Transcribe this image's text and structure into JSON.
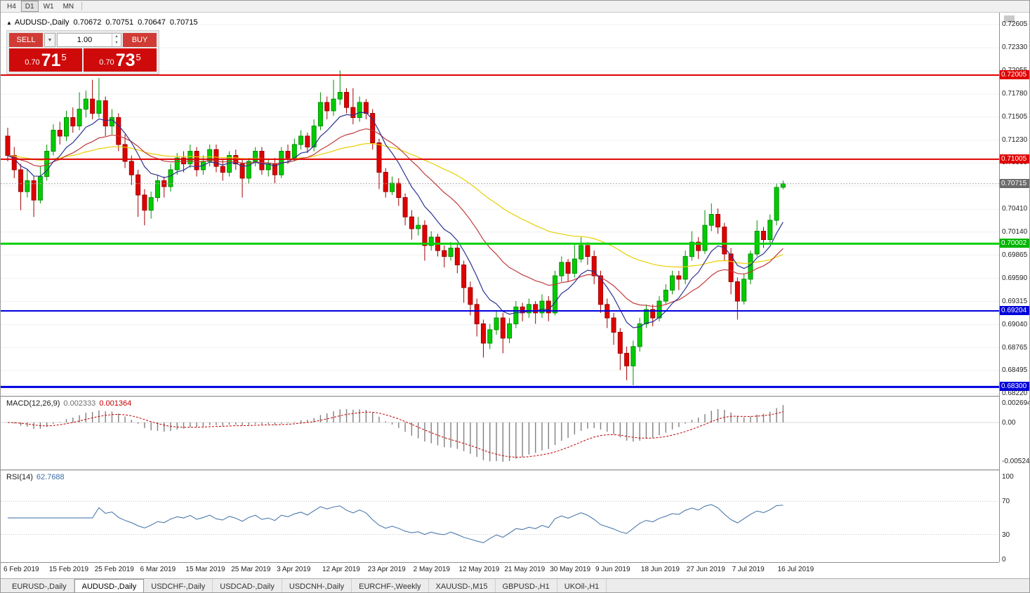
{
  "toolbar": {
    "timeframes": [
      "H4",
      "D1",
      "W1",
      "MN"
    ],
    "active_timeframe": "D1"
  },
  "icons": {
    "panel_toggle": "▲",
    "dropdown": "▼",
    "spin_up": "▴",
    "spin_down": "▾"
  },
  "chart_header": {
    "symbol_title": "AUDUSD-,Daily",
    "open": "0.70672",
    "high": "0.70751",
    "low": "0.70647",
    "close": "0.70715"
  },
  "trade_panel": {
    "sell_label": "SELL",
    "buy_label": "BUY",
    "volume": "1.00",
    "sell_price": {
      "big_figure": "0.70",
      "pips": "71",
      "pipette": "5"
    },
    "buy_price": {
      "big_figure": "0.70",
      "pips": "73",
      "pipette": "5"
    }
  },
  "price_axis": {
    "labels": [
      "0.72605",
      "0.72330",
      "0.72055",
      "0.71780",
      "0.71505",
      "0.71230",
      "0.70960",
      "0.70685",
      "0.70410",
      "0.70140",
      "0.69865",
      "0.69590",
      "0.69315",
      "0.69040",
      "0.68765",
      "0.68495",
      "0.68220"
    ],
    "tags": [
      {
        "text": "0.72005",
        "price": 0.72005,
        "bg": "#e00000"
      },
      {
        "text": "0.71005",
        "price": 0.71005,
        "bg": "#e00000"
      },
      {
        "text": "0.70715",
        "price": 0.70715,
        "bg": "#6b6b6b"
      },
      {
        "text": "0.70002",
        "price": 0.70002,
        "bg": "#00b400"
      },
      {
        "text": "0.69204",
        "price": 0.69204,
        "bg": "#0000d8"
      },
      {
        "text": "0.68300",
        "price": 0.683,
        "bg": "#0000d8"
      }
    ]
  },
  "date_axis": [
    "6 Feb 2019",
    "15 Feb 2019",
    "25 Feb 2019",
    "6 Mar 2019",
    "15 Mar 2019",
    "25 Mar 2019",
    "3 Apr 2019",
    "12 Apr 2019",
    "23 Apr 2019",
    "2 May 2019",
    "12 May 2019",
    "21 May 2019",
    "30 May 2019",
    "9 Jun 2019",
    "18 Jun 2019",
    "27 Jun 2019",
    "7 Jul 2019",
    "16 Jul 2019"
  ],
  "macd_panel": {
    "name": "MACD(12,26,9)",
    "value": "0.002333",
    "signal_value": "0.001364",
    "axis": [
      "0.002694",
      "0.00",
      "-0.005242"
    ]
  },
  "rsi_panel": {
    "name": "RSI(14)",
    "value": "62.7688",
    "axis": [
      "100",
      "70",
      "30",
      "0"
    ],
    "levels": [
      70,
      30
    ]
  },
  "tabs": [
    {
      "label": "EURUSD-,Daily",
      "active": false
    },
    {
      "label": "AUDUSD-,Daily",
      "active": true
    },
    {
      "label": "USDCHF-,Daily",
      "active": false
    },
    {
      "label": "USDCAD-,Daily",
      "active": false
    },
    {
      "label": "USDCNH-,Daily",
      "active": false
    },
    {
      "label": "EURCHF-,Weekly",
      "active": false
    },
    {
      "label": "XAUUSD-,M15",
      "active": false
    },
    {
      "label": "GBPUSD-,H1",
      "active": false
    },
    {
      "label": "UKOil-,H1",
      "active": false
    }
  ],
  "chart_data": {
    "type": "candlestick",
    "symbol": "AUDUSD",
    "timeframe": "Daily",
    "y_range": [
      0.6822,
      0.72605
    ],
    "current_price": 0.70715,
    "colors": {
      "bull_fill": "#00cc00",
      "bull_edge": "#009000",
      "bear_fill": "#e00000",
      "bear_edge": "#a00000",
      "grid": "#f0f0f0",
      "macd_hist": "#808080",
      "macd_signal": "#c00000",
      "rsi_line": "#3b6ea5"
    },
    "hlines": [
      {
        "price": 0.72005,
        "color": "#e00000",
        "width": 2
      },
      {
        "price": 0.71005,
        "color": "#e00000",
        "width": 2
      },
      {
        "price": 0.70002,
        "color": "#00d000",
        "width": 3
      },
      {
        "price": 0.69204,
        "color": "#0000e0",
        "width": 2
      },
      {
        "price": 0.683,
        "color": "#0000e0",
        "width": 3
      }
    ],
    "indicators": {
      "mas": [
        {
          "period": 55,
          "color": "#e8cf00"
        },
        {
          "period": 21,
          "color": "#c03a3a"
        },
        {
          "period": 8,
          "color": "#2c3292"
        }
      ],
      "macd": {
        "fast": 12,
        "slow": 26,
        "signal": 9
      },
      "rsi": {
        "period": 14
      }
    },
    "ohlc": [
      [
        0.7128,
        0.7138,
        0.7098,
        0.7105
      ],
      [
        0.7105,
        0.7115,
        0.7078,
        0.7088
      ],
      [
        0.7088,
        0.7095,
        0.704,
        0.7062
      ],
      [
        0.7062,
        0.7088,
        0.7055,
        0.7075
      ],
      [
        0.7075,
        0.708,
        0.7032,
        0.7052
      ],
      [
        0.7052,
        0.7092,
        0.7048,
        0.708
      ],
      [
        0.708,
        0.7118,
        0.7075,
        0.711
      ],
      [
        0.711,
        0.7142,
        0.7105,
        0.7135
      ],
      [
        0.7135,
        0.7145,
        0.7118,
        0.7128
      ],
      [
        0.7128,
        0.7158,
        0.7122,
        0.715
      ],
      [
        0.715,
        0.7162,
        0.7132,
        0.714
      ],
      [
        0.714,
        0.718,
        0.7135,
        0.716
      ],
      [
        0.716,
        0.7182,
        0.715,
        0.7172
      ],
      [
        0.7172,
        0.7195,
        0.7148,
        0.7155
      ],
      [
        0.7155,
        0.7197,
        0.715,
        0.717
      ],
      [
        0.717,
        0.7175,
        0.7128,
        0.714
      ],
      [
        0.714,
        0.716,
        0.713,
        0.715
      ],
      [
        0.715,
        0.7155,
        0.711,
        0.7118
      ],
      [
        0.7118,
        0.713,
        0.709,
        0.7098
      ],
      [
        0.7098,
        0.7105,
        0.707,
        0.7082
      ],
      [
        0.7082,
        0.7088,
        0.7032,
        0.7058
      ],
      [
        0.7058,
        0.7065,
        0.7022,
        0.704
      ],
      [
        0.704,
        0.7062,
        0.703,
        0.7055
      ],
      [
        0.7055,
        0.7082,
        0.705,
        0.7075
      ],
      [
        0.7075,
        0.708,
        0.7055,
        0.7068
      ],
      [
        0.7068,
        0.7095,
        0.7062,
        0.7088
      ],
      [
        0.7088,
        0.7108,
        0.7082,
        0.7102
      ],
      [
        0.7102,
        0.711,
        0.7085,
        0.7095
      ],
      [
        0.7095,
        0.7118,
        0.709,
        0.711
      ],
      [
        0.711,
        0.7115,
        0.708,
        0.7088
      ],
      [
        0.7088,
        0.7105,
        0.7082,
        0.7098
      ],
      [
        0.7098,
        0.7118,
        0.7092,
        0.7112
      ],
      [
        0.7112,
        0.7118,
        0.7085,
        0.7092
      ],
      [
        0.7092,
        0.71,
        0.7075,
        0.7085
      ],
      [
        0.7085,
        0.711,
        0.708,
        0.7105
      ],
      [
        0.7105,
        0.7112,
        0.7088,
        0.7095
      ],
      [
        0.7095,
        0.71,
        0.7055,
        0.7078
      ],
      [
        0.7078,
        0.7102,
        0.7072,
        0.7098
      ],
      [
        0.7098,
        0.7115,
        0.7092,
        0.711
      ],
      [
        0.711,
        0.7115,
        0.7082,
        0.7088
      ],
      [
        0.7088,
        0.71,
        0.708,
        0.7095
      ],
      [
        0.7095,
        0.7102,
        0.7072,
        0.7082
      ],
      [
        0.7082,
        0.7115,
        0.7078,
        0.711
      ],
      [
        0.711,
        0.7118,
        0.7095,
        0.7102
      ],
      [
        0.7102,
        0.7125,
        0.7098,
        0.7118
      ],
      [
        0.7118,
        0.7135,
        0.7112,
        0.7128
      ],
      [
        0.7128,
        0.7132,
        0.7108,
        0.7115
      ],
      [
        0.7115,
        0.7148,
        0.711,
        0.714
      ],
      [
        0.714,
        0.718,
        0.7135,
        0.7168
      ],
      [
        0.7168,
        0.7175,
        0.7148,
        0.7158
      ],
      [
        0.7158,
        0.7195,
        0.7152,
        0.7172
      ],
      [
        0.7172,
        0.7206,
        0.7165,
        0.718
      ],
      [
        0.718,
        0.7185,
        0.7155,
        0.7162
      ],
      [
        0.7162,
        0.7185,
        0.7142,
        0.715
      ],
      [
        0.715,
        0.7175,
        0.7145,
        0.7168
      ],
      [
        0.7168,
        0.7172,
        0.7148,
        0.7155
      ],
      [
        0.7155,
        0.716,
        0.7112,
        0.712
      ],
      [
        0.712,
        0.7125,
        0.7065,
        0.7085
      ],
      [
        0.7085,
        0.709,
        0.7055,
        0.7062
      ],
      [
        0.7062,
        0.708,
        0.7058,
        0.7072
      ],
      [
        0.7072,
        0.7078,
        0.7045,
        0.7055
      ],
      [
        0.7055,
        0.706,
        0.7022,
        0.7032
      ],
      [
        0.7032,
        0.704,
        0.7005,
        0.7018
      ],
      [
        0.7018,
        0.7032,
        0.701,
        0.7022
      ],
      [
        0.7022,
        0.7028,
        0.698,
        0.6998
      ],
      [
        0.6998,
        0.7015,
        0.6992,
        0.7008
      ],
      [
        0.7008,
        0.7012,
        0.6985,
        0.6992
      ],
      [
        0.6992,
        0.6998,
        0.6972,
        0.6985
      ],
      [
        0.6985,
        0.7002,
        0.698,
        0.6995
      ],
      [
        0.6995,
        0.7,
        0.6965,
        0.6975
      ],
      [
        0.6975,
        0.698,
        0.693,
        0.6948
      ],
      [
        0.6948,
        0.6955,
        0.6915,
        0.6928
      ],
      [
        0.6928,
        0.6935,
        0.689,
        0.6905
      ],
      [
        0.6905,
        0.691,
        0.6865,
        0.6882
      ],
      [
        0.6882,
        0.6905,
        0.6875,
        0.6898
      ],
      [
        0.6898,
        0.692,
        0.6892,
        0.6912
      ],
      [
        0.6912,
        0.6918,
        0.687,
        0.6888
      ],
      [
        0.6888,
        0.6912,
        0.6882,
        0.6905
      ],
      [
        0.6905,
        0.6932,
        0.69,
        0.6925
      ],
      [
        0.6925,
        0.693,
        0.6908,
        0.6918
      ],
      [
        0.6918,
        0.6935,
        0.6912,
        0.6928
      ],
      [
        0.6928,
        0.6932,
        0.6905,
        0.6918
      ],
      [
        0.6918,
        0.694,
        0.6912,
        0.6932
      ],
      [
        0.6932,
        0.6938,
        0.6908,
        0.6918
      ],
      [
        0.6918,
        0.6968,
        0.6915,
        0.6962
      ],
      [
        0.6962,
        0.6985,
        0.6955,
        0.6978
      ],
      [
        0.6978,
        0.6982,
        0.6955,
        0.6965
      ],
      [
        0.6965,
        0.7,
        0.696,
        0.6982
      ],
      [
        0.6982,
        0.7008,
        0.6978,
        0.6998
      ],
      [
        0.6998,
        0.7002,
        0.6975,
        0.6985
      ],
      [
        0.6985,
        0.6992,
        0.6952,
        0.6962
      ],
      [
        0.6962,
        0.6968,
        0.6918,
        0.6928
      ],
      [
        0.6928,
        0.6935,
        0.69,
        0.6912
      ],
      [
        0.6912,
        0.6918,
        0.688,
        0.6895
      ],
      [
        0.6895,
        0.69,
        0.685,
        0.687
      ],
      [
        0.687,
        0.6878,
        0.6838,
        0.6855
      ],
      [
        0.6855,
        0.6885,
        0.6832,
        0.6878
      ],
      [
        0.6878,
        0.6912,
        0.6872,
        0.6905
      ],
      [
        0.6905,
        0.6928,
        0.69,
        0.6922
      ],
      [
        0.6922,
        0.6928,
        0.6902,
        0.6912
      ],
      [
        0.6912,
        0.6938,
        0.6908,
        0.6932
      ],
      [
        0.6932,
        0.6952,
        0.6928,
        0.6945
      ],
      [
        0.6945,
        0.6968,
        0.694,
        0.6962
      ],
      [
        0.6962,
        0.6968,
        0.6945,
        0.6958
      ],
      [
        0.6958,
        0.6992,
        0.6952,
        0.6985
      ],
      [
        0.6985,
        0.7015,
        0.698,
        0.7002
      ],
      [
        0.7002,
        0.7008,
        0.6982,
        0.6992
      ],
      [
        0.6992,
        0.704,
        0.6988,
        0.7022
      ],
      [
        0.7022,
        0.7048,
        0.7015,
        0.7035
      ],
      [
        0.7035,
        0.7042,
        0.7012,
        0.702
      ],
      [
        0.702,
        0.7025,
        0.698,
        0.6988
      ],
      [
        0.6988,
        0.6995,
        0.694,
        0.6955
      ],
      [
        0.6955,
        0.696,
        0.691,
        0.6932
      ],
      [
        0.6932,
        0.6965,
        0.6928,
        0.6958
      ],
      [
        0.6958,
        0.6992,
        0.6952,
        0.6988
      ],
      [
        0.6988,
        0.7028,
        0.6985,
        0.7015
      ],
      [
        0.7015,
        0.702,
        0.6995,
        0.7005
      ],
      [
        0.7005,
        0.7035,
        0.7,
        0.7028
      ],
      [
        0.7028,
        0.7072,
        0.7022,
        0.7067
      ],
      [
        0.70672,
        0.70751,
        0.70647,
        0.70715
      ]
    ]
  }
}
